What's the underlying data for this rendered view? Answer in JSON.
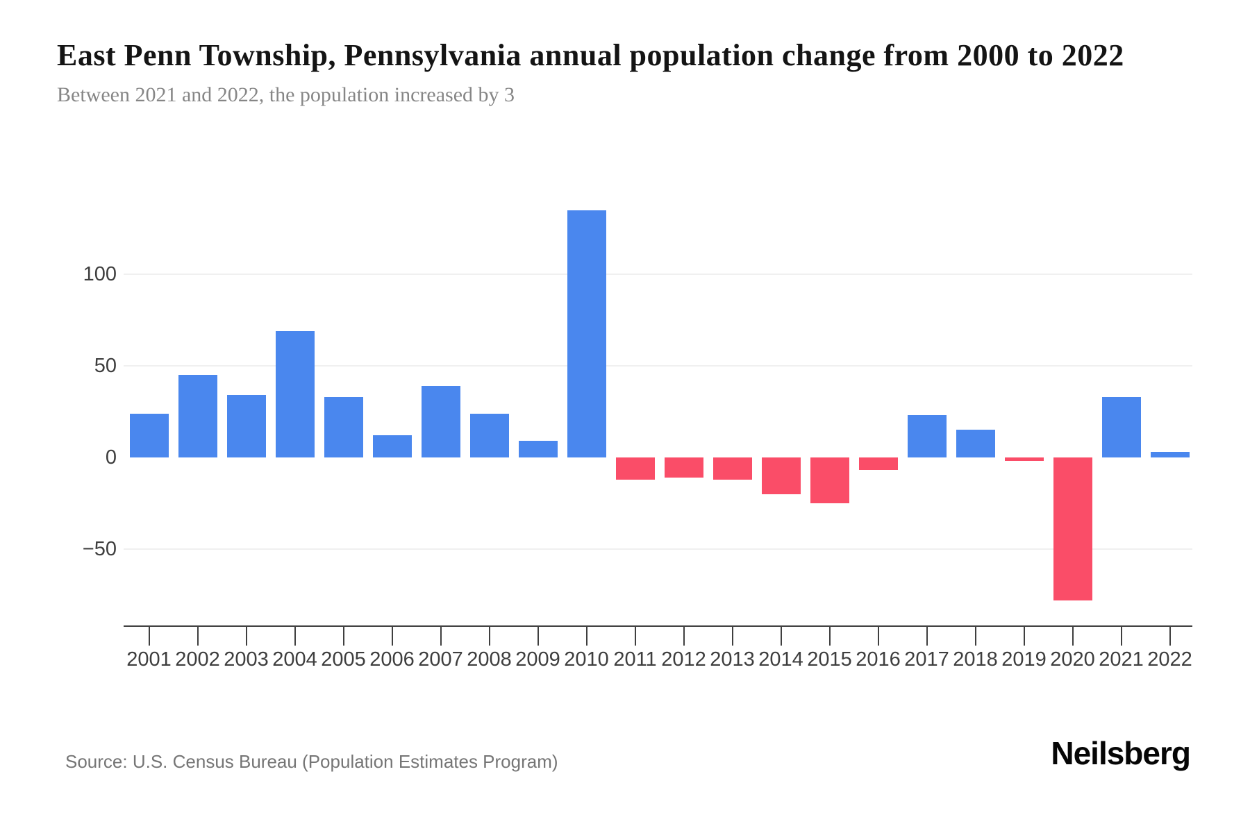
{
  "header": {
    "title": "East Penn Township, Pennsylvania annual population change from 2000 to 2022",
    "subtitle": "Between 2021 and 2022, the population increased by 3"
  },
  "chart_data": {
    "type": "bar",
    "title": "East Penn Township, Pennsylvania annual population change from 2000 to 2022",
    "categories": [
      "2001",
      "2002",
      "2003",
      "2004",
      "2005",
      "2006",
      "2007",
      "2008",
      "2009",
      "2010",
      "2011",
      "2012",
      "2013",
      "2014",
      "2015",
      "2016",
      "2017",
      "2018",
      "2019",
      "2020",
      "2021",
      "2022"
    ],
    "values": [
      24,
      45,
      34,
      69,
      33,
      12,
      39,
      24,
      9,
      135,
      -12,
      -11,
      -12,
      -20,
      -25,
      -7,
      23,
      15,
      -2,
      -78,
      33,
      3
    ],
    "xlabel": "",
    "ylabel": "",
    "ylim": [
      -90,
      160
    ],
    "yticks": [
      {
        "value": 100,
        "label": "100"
      },
      {
        "value": 50,
        "label": "50"
      },
      {
        "value": 0,
        "label": "0"
      },
      {
        "value": -50,
        "label": "−50"
      }
    ],
    "gridline_values": [
      100,
      50,
      -50
    ],
    "legend": "none",
    "positive_color": "#4a87ee",
    "negative_color": "#fa4d68"
  },
  "footer": {
    "source": "Source: U.S. Census Bureau (Population Estimates Program)",
    "brand": "Neilsberg"
  }
}
